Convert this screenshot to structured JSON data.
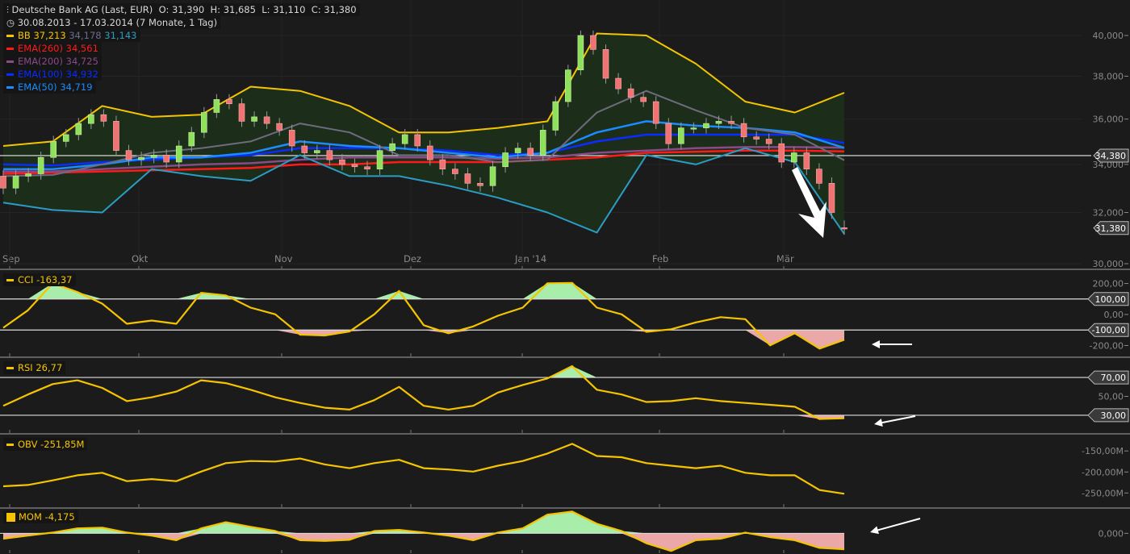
{
  "header": {
    "instrument": "Deutsche Bank AG (Last, EUR)",
    "ohlc": "O: 31,390  H: 31,685  L: 31,110  C: 31,380",
    "range": "30.08.2013 - 17.03.2014 (7 Monate, 1 Tag)",
    "chart_icon": "candlestick-settings-icon",
    "clock_icon": "clock-icon"
  },
  "legend": {
    "bb": {
      "label": "BB",
      "upper": "37,213",
      "middle": "34,178",
      "lower": "31,143"
    },
    "ema260": {
      "label": "EMA(260)",
      "value": "34,561"
    },
    "ema200": {
      "label": "EMA(200)",
      "value": "34,725"
    },
    "ema100": {
      "label": "EMA(100)",
      "value": "34,932"
    },
    "ema50": {
      "label": "EMA(50)",
      "value": "34,719"
    },
    "cci": {
      "label": "CCI",
      "value": "-163,37"
    },
    "rsi": {
      "label": "RSI",
      "value": "26,77"
    },
    "obv": {
      "label": "OBV",
      "value": "-251,85M"
    },
    "mom": {
      "label": "MOM",
      "value": "-4,175"
    }
  },
  "colors": {
    "background": "#1c1b1b",
    "bb_upper": "#f5c400",
    "bb_middle": "#6e6a80",
    "bb_lower": "#2b9cc4",
    "bb_fill": "#1c2e1a",
    "ema260": "#ff1a1a",
    "ema200": "#8a4a8a",
    "ema100": "#0a2cff",
    "ema50": "#1a8cff",
    "up": "#8fe05a",
    "down": "#f07272",
    "indicator": "#f5c400",
    "fill_high": "#a8eeaa",
    "fill_low": "#eba8a8"
  },
  "chart_data": [
    {
      "type": "candlestick",
      "title": "Deutsche Bank AG (Last, EUR)",
      "scale": "log",
      "ylim": [
        30.0,
        40.5
      ],
      "yticks": [
        "40,000",
        "38,000",
        "36,000",
        "34,000",
        "32,000",
        "30,000"
      ],
      "ytick_values": [
        40,
        38,
        36,
        34,
        32,
        30
      ],
      "xticks": [
        "Sep",
        "Okt",
        "Nov",
        "Dez",
        "Jan '14",
        "Feb",
        "Mär"
      ],
      "grid": true,
      "candles_open_close": [
        [
          33.5,
          33.0
        ],
        [
          33.0,
          33.5
        ],
        [
          33.5,
          33.6
        ],
        [
          33.6,
          34.3
        ],
        [
          34.3,
          35.0
        ],
        [
          35.0,
          35.3
        ],
        [
          35.3,
          35.8
        ],
        [
          35.8,
          36.2
        ],
        [
          36.2,
          35.9
        ],
        [
          35.9,
          34.6
        ],
        [
          34.6,
          34.2
        ],
        [
          34.2,
          34.3
        ],
        [
          34.3,
          34.4
        ],
        [
          34.4,
          34.1
        ],
        [
          34.1,
          34.8
        ],
        [
          34.8,
          35.4
        ],
        [
          35.4,
          36.3
        ],
        [
          36.3,
          36.9
        ],
        [
          36.9,
          36.7
        ],
        [
          36.7,
          35.9
        ],
        [
          35.9,
          36.1
        ],
        [
          36.1,
          35.8
        ],
        [
          35.8,
          35.5
        ],
        [
          35.5,
          34.8
        ],
        [
          34.8,
          34.5
        ],
        [
          34.5,
          34.6
        ],
        [
          34.6,
          34.2
        ],
        [
          34.2,
          34.0
        ],
        [
          34.0,
          33.9
        ],
        [
          33.9,
          33.8
        ],
        [
          33.8,
          34.6
        ],
        [
          34.6,
          34.9
        ],
        [
          34.9,
          35.3
        ],
        [
          35.3,
          34.8
        ],
        [
          34.8,
          34.2
        ],
        [
          34.2,
          33.8
        ],
        [
          33.8,
          33.6
        ],
        [
          33.6,
          33.2
        ],
        [
          33.2,
          33.1
        ],
        [
          33.1,
          33.9
        ],
        [
          33.9,
          34.5
        ],
        [
          34.5,
          34.7
        ],
        [
          34.7,
          34.4
        ],
        [
          34.4,
          35.5
        ],
        [
          35.5,
          36.8
        ],
        [
          36.8,
          38.3
        ],
        [
          38.3,
          40.0
        ],
        [
          40.0,
          39.3
        ],
        [
          39.3,
          37.9
        ],
        [
          37.9,
          37.4
        ],
        [
          37.4,
          37.0
        ],
        [
          37.0,
          36.8
        ],
        [
          36.8,
          35.8
        ],
        [
          35.8,
          34.9
        ],
        [
          34.9,
          35.6
        ],
        [
          35.6,
          35.6
        ],
        [
          35.6,
          35.8
        ],
        [
          35.8,
          35.9
        ],
        [
          35.9,
          35.8
        ],
        [
          35.8,
          35.2
        ],
        [
          35.2,
          35.1
        ],
        [
          35.1,
          34.9
        ],
        [
          34.9,
          34.1
        ],
        [
          34.1,
          34.5
        ],
        [
          34.5,
          33.8
        ],
        [
          33.8,
          33.2
        ],
        [
          33.2,
          32.0
        ],
        [
          31.39,
          31.38
        ]
      ],
      "last_candle": {
        "open": 31.39,
        "high": 31.685,
        "low": 31.11,
        "close": 31.38
      },
      "series": [
        {
          "name": "BB",
          "key": "bb_upper",
          "values": [
            34.8,
            35.0,
            36.6,
            36.1,
            36.2,
            37.5,
            37.3,
            36.6,
            35.4,
            35.4,
            35.6,
            35.9,
            40.1,
            40.0,
            38.6,
            36.8,
            36.3,
            37.213
          ]
        },
        {
          "name": "BB",
          "key": "bb_middle",
          "values": [
            33.5,
            33.55,
            34.0,
            34.5,
            34.7,
            35.0,
            35.8,
            35.4,
            34.4,
            34.4,
            34.1,
            34.2,
            36.3,
            37.3,
            36.4,
            35.6,
            35.3,
            34.178
          ]
        },
        {
          "name": "BB",
          "key": "bb_lower",
          "values": [
            32.4,
            32.1,
            32.0,
            33.8,
            33.5,
            33.3,
            34.4,
            33.5,
            33.5,
            33.1,
            32.6,
            32.0,
            31.2,
            34.4,
            34.0,
            34.7,
            34.1,
            31.143
          ]
        },
        {
          "name": "EMA(260)",
          "key": "ema260",
          "values": [
            33.6,
            33.65,
            33.7,
            33.75,
            33.8,
            33.85,
            34.0,
            34.0,
            34.1,
            34.1,
            34.1,
            34.2,
            34.3,
            34.5,
            34.55,
            34.6,
            34.6,
            34.561
          ]
        },
        {
          "name": "EMA(200)",
          "key": "ema200",
          "values": [
            33.7,
            33.7,
            33.8,
            33.9,
            34.0,
            34.05,
            34.2,
            34.3,
            34.3,
            34.3,
            34.25,
            34.3,
            34.5,
            34.6,
            34.7,
            34.75,
            34.75,
            34.725
          ]
        },
        {
          "name": "EMA(100)",
          "key": "ema100",
          "values": [
            34.0,
            33.95,
            34.1,
            34.2,
            34.3,
            34.4,
            34.7,
            34.7,
            34.7,
            34.6,
            34.4,
            34.5,
            35.0,
            35.3,
            35.3,
            35.3,
            35.3,
            34.932
          ]
        },
        {
          "name": "EMA(50)",
          "key": "ema50",
          "values": [
            33.8,
            33.8,
            34.0,
            34.3,
            34.3,
            34.5,
            35.0,
            34.8,
            34.7,
            34.5,
            34.3,
            34.5,
            35.4,
            35.9,
            35.7,
            35.6,
            35.4,
            34.719
          ]
        }
      ],
      "markers": [
        {
          "value": 34.38,
          "label": "34,380"
        },
        {
          "value": 31.38,
          "label": "31,380"
        }
      ]
    },
    {
      "type": "line",
      "name": "CCI",
      "ylim": [
        -260,
        260
      ],
      "yticks": [
        "200,00",
        "0,00",
        "-200,00"
      ],
      "ytick_values": [
        200,
        0,
        -200
      ],
      "levels": [
        {
          "value": 100,
          "label": "100,00"
        },
        {
          "value": -100,
          "label": "-100,00"
        }
      ],
      "values": [
        -86,
        27,
        201,
        145,
        70,
        -60,
        -39,
        -60,
        140,
        123,
        44,
        1,
        -130,
        -135,
        -109,
        1,
        152,
        -69,
        -121,
        -77,
        -8,
        44,
        201,
        204,
        44,
        1,
        -112,
        -95,
        -51,
        -17,
        -30,
        -199,
        -121,
        -220,
        -163.37
      ]
    },
    {
      "type": "line",
      "name": "RSI",
      "ylim": [
        12,
        88
      ],
      "yticks": [
        "50,00"
      ],
      "ytick_values": [
        50
      ],
      "levels": [
        {
          "value": 70,
          "label": "70,00"
        },
        {
          "value": 30,
          "label": "30,00"
        }
      ],
      "values": [
        40,
        52,
        63,
        67,
        59,
        45,
        49,
        55,
        67,
        64,
        57,
        49,
        43,
        38,
        36,
        46,
        60,
        40,
        36,
        40,
        54,
        62,
        69,
        82,
        57,
        52,
        44,
        45,
        48,
        45,
        43,
        41,
        39,
        26,
        26.77
      ]
    },
    {
      "type": "line",
      "name": "OBV",
      "ylim": [
        -282,
        -115
      ],
      "yticks": [
        "-150,00M",
        "-200,00M",
        "-250,00M"
      ],
      "ytick_values": [
        -150,
        -200,
        -250
      ],
      "values": [
        -234,
        -231,
        -220,
        -208,
        -202,
        -222,
        -217,
        -222,
        -199,
        -179,
        -174,
        -175,
        -168,
        -182,
        -191,
        -179,
        -171,
        -191,
        -194,
        -199,
        -185,
        -174,
        -156,
        -133,
        -162,
        -165,
        -179,
        -185,
        -191,
        -185,
        -202,
        -208,
        -208,
        -243,
        -251.85
      ]
    },
    {
      "type": "area",
      "name": "MOM",
      "ylim": [
        -5.2,
        6.2
      ],
      "yticks": [
        "0,000"
      ],
      "ytick_values": [
        0
      ],
      "values": [
        -1.4,
        -0.6,
        0.2,
        1.3,
        1.5,
        0.2,
        -0.6,
        -1.8,
        1.3,
        2.9,
        1.7,
        0.6,
        -1.8,
        -2.0,
        -1.7,
        0.6,
        0.9,
        0.2,
        -0.6,
        -1.8,
        0.2,
        1.3,
        4.9,
        5.7,
        2.5,
        0.6,
        -2.6,
        -4.6,
        -1.8,
        -1.4,
        0.2,
        -1.0,
        -1.8,
        -3.8,
        -4.175
      ]
    }
  ]
}
